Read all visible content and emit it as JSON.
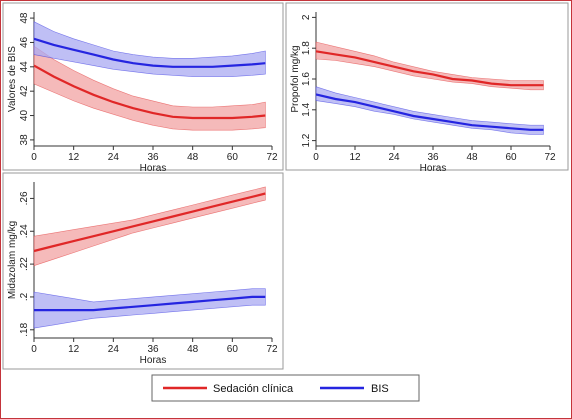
{
  "colors": {
    "clinical": "#e02727",
    "clinical_band": "#f2a3a3",
    "bis": "#2525e0",
    "bis_band": "#a9a9f2",
    "frame": "#c4343b",
    "panel_border": "#9a9a9a"
  },
  "legend": {
    "items": [
      {
        "label": "Sedación clínica",
        "color": "#e02727"
      },
      {
        "label": "BIS",
        "color": "#2525e0"
      }
    ]
  },
  "chart_data": [
    {
      "type": "line",
      "xlabel": "Horas",
      "ylabel": "Valores de BIS",
      "xlim": [
        0,
        72
      ],
      "ylim": [
        37.5,
        48.5
      ],
      "xticks": [
        "0",
        "12",
        "24",
        "36",
        "48",
        "60",
        "72"
      ],
      "yticks": [
        "38",
        "40",
        "42",
        "44",
        "46",
        "48"
      ],
      "x": [
        0,
        6,
        12,
        18,
        24,
        30,
        36,
        42,
        48,
        54,
        60,
        66,
        70
      ],
      "series": [
        {
          "name": "Sedación clínica",
          "color": "#e02727",
          "values": [
            44.1,
            43.2,
            42.4,
            41.7,
            41.1,
            40.6,
            40.2,
            39.9,
            39.8,
            39.8,
            39.8,
            39.9,
            40.0
          ],
          "lower": [
            42.6,
            41.9,
            41.2,
            40.6,
            40.1,
            39.6,
            39.2,
            38.9,
            38.8,
            38.8,
            38.8,
            38.9,
            39.0
          ],
          "upper": [
            45.7,
            44.6,
            43.7,
            42.9,
            42.2,
            41.6,
            41.2,
            40.8,
            40.7,
            40.7,
            40.8,
            40.9,
            41.1
          ]
        },
        {
          "name": "BIS",
          "color": "#2525e0",
          "values": [
            46.3,
            45.8,
            45.4,
            45.0,
            44.6,
            44.3,
            44.1,
            44.0,
            44.0,
            44.0,
            44.1,
            44.2,
            44.3
          ],
          "lower": [
            45.0,
            44.7,
            44.4,
            44.1,
            43.8,
            43.6,
            43.4,
            43.3,
            43.2,
            43.2,
            43.2,
            43.3,
            43.4
          ],
          "upper": [
            47.7,
            46.9,
            46.3,
            45.8,
            45.3,
            45.0,
            44.8,
            44.7,
            44.7,
            44.8,
            44.9,
            45.1,
            45.3
          ]
        }
      ]
    },
    {
      "type": "line",
      "xlabel": "Horas",
      "ylabel": "Propofol mg/kg",
      "xlim": [
        0,
        72
      ],
      "ylim": [
        1.165,
        2.035
      ],
      "xticks": [
        "0",
        "12",
        "24",
        "36",
        "48",
        "60",
        "72"
      ],
      "yticks": [
        "1.2",
        "1.4",
        "1.6",
        "1.8",
        "2"
      ],
      "x": [
        0,
        6,
        12,
        18,
        24,
        30,
        36,
        42,
        48,
        54,
        60,
        66,
        70
      ],
      "series": [
        {
          "name": "Sedación clínica",
          "color": "#e02727",
          "values": [
            1.78,
            1.76,
            1.74,
            1.71,
            1.68,
            1.65,
            1.63,
            1.6,
            1.59,
            1.57,
            1.56,
            1.56,
            1.56
          ],
          "lower": [
            1.73,
            1.72,
            1.7,
            1.68,
            1.65,
            1.62,
            1.6,
            1.58,
            1.57,
            1.55,
            1.54,
            1.53,
            1.53
          ],
          "upper": [
            1.84,
            1.81,
            1.78,
            1.75,
            1.71,
            1.68,
            1.65,
            1.63,
            1.61,
            1.6,
            1.59,
            1.59,
            1.59
          ]
        },
        {
          "name": "BIS",
          "color": "#2525e0",
          "values": [
            1.5,
            1.47,
            1.45,
            1.42,
            1.39,
            1.36,
            1.34,
            1.32,
            1.3,
            1.29,
            1.28,
            1.27,
            1.27
          ],
          "lower": [
            1.46,
            1.44,
            1.42,
            1.39,
            1.37,
            1.34,
            1.32,
            1.3,
            1.28,
            1.27,
            1.25,
            1.24,
            1.24
          ],
          "upper": [
            1.55,
            1.51,
            1.48,
            1.45,
            1.42,
            1.39,
            1.37,
            1.35,
            1.33,
            1.32,
            1.31,
            1.3,
            1.3
          ]
        }
      ]
    },
    {
      "type": "line",
      "xlabel": "Horas",
      "ylabel": "Midazolam mg/kg",
      "xlim": [
        0,
        72
      ],
      "ylim": [
        0.175,
        0.27
      ],
      "xticks": [
        "0",
        "12",
        "24",
        "36",
        "48",
        "60",
        "72"
      ],
      "yticks": [
        ".18",
        ".2",
        ".22",
        ".24",
        ".26"
      ],
      "x": [
        0,
        6,
        12,
        18,
        24,
        30,
        36,
        42,
        48,
        54,
        60,
        66,
        70
      ],
      "series": [
        {
          "name": "Sedación clínica",
          "color": "#e02727",
          "values": [
            0.228,
            0.231,
            0.234,
            0.237,
            0.24,
            0.243,
            0.246,
            0.249,
            0.252,
            0.255,
            0.258,
            0.261,
            0.263
          ],
          "lower": [
            0.219,
            0.223,
            0.227,
            0.231,
            0.235,
            0.239,
            0.242,
            0.245,
            0.248,
            0.251,
            0.254,
            0.257,
            0.259
          ],
          "upper": [
            0.237,
            0.239,
            0.241,
            0.243,
            0.245,
            0.247,
            0.25,
            0.253,
            0.256,
            0.259,
            0.262,
            0.265,
            0.267
          ]
        },
        {
          "name": "BIS",
          "color": "#2525e0",
          "values": [
            0.192,
            0.192,
            0.192,
            0.192,
            0.193,
            0.194,
            0.195,
            0.196,
            0.197,
            0.198,
            0.199,
            0.2,
            0.2
          ],
          "lower": [
            0.181,
            0.183,
            0.185,
            0.187,
            0.188,
            0.189,
            0.19,
            0.191,
            0.192,
            0.193,
            0.194,
            0.195,
            0.195
          ],
          "upper": [
            0.203,
            0.201,
            0.199,
            0.197,
            0.198,
            0.199,
            0.2,
            0.201,
            0.202,
            0.203,
            0.204,
            0.205,
            0.205
          ]
        }
      ]
    }
  ]
}
